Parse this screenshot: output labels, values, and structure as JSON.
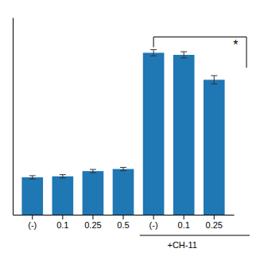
{
  "chart_data": {
    "type": "bar",
    "categories": [
      "(-)",
      "0.1",
      "0.25",
      "0.5",
      "(-)",
      "0.1",
      "0.25"
    ],
    "values": [
      18,
      18.5,
      21,
      22,
      78,
      77,
      65
    ],
    "errors": [
      0.8,
      0.8,
      0.8,
      0.8,
      1.5,
      1.5,
      2.0
    ],
    "ylim": [
      0,
      95
    ],
    "tick_labels": "x",
    "annotations": [
      "+CH-11",
      "*"
    ]
  }
}
